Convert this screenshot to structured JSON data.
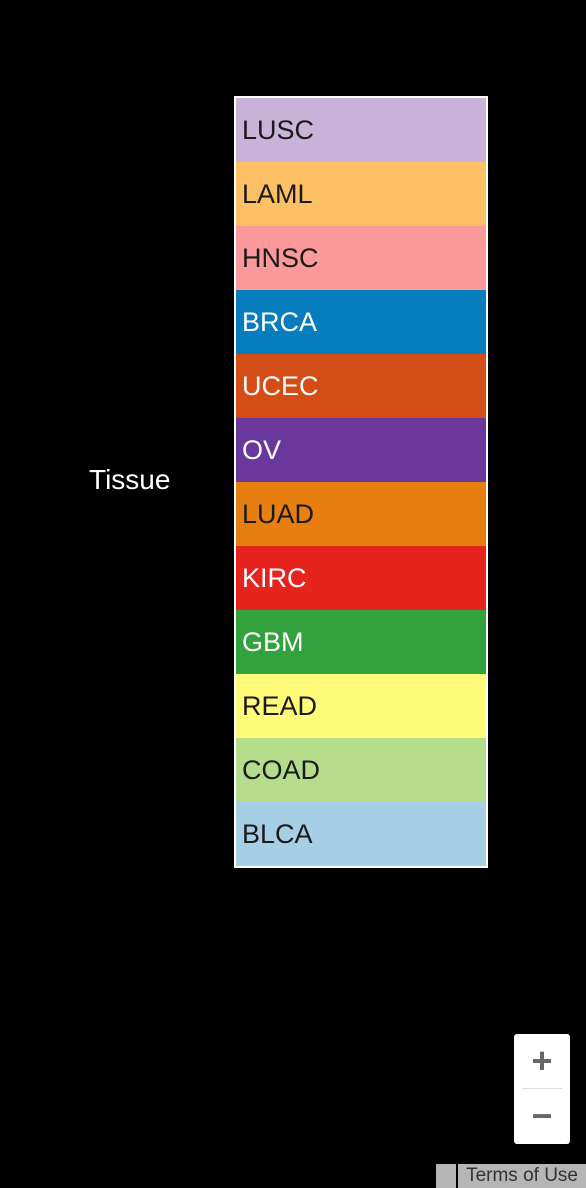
{
  "legend": {
    "title": "Tissue",
    "items": [
      {
        "label": "LUSC",
        "color": "#c9b3d9",
        "text_color": "#1a1a1a"
      },
      {
        "label": "LAML",
        "color": "#fdc064",
        "text_color": "#1a1a1a"
      },
      {
        "label": "HNSC",
        "color": "#fc999a",
        "text_color": "#1a1a1a"
      },
      {
        "label": "BRCA",
        "color": "#087dbd",
        "text_color": "#ffffff"
      },
      {
        "label": "UCEC",
        "color": "#d44c16",
        "text_color": "#ffffff"
      },
      {
        "label": "OV",
        "color": "#6a379c",
        "text_color": "#ffffff"
      },
      {
        "label": "LUAD",
        "color": "#e67f10",
        "text_color": "#1a1a1a"
      },
      {
        "label": "KIRC",
        "color": "#e6231c",
        "text_color": "#ffffff"
      },
      {
        "label": "GBM",
        "color": "#33a13d",
        "text_color": "#ffffff"
      },
      {
        "label": "READ",
        "color": "#fffa78",
        "text_color": "#1a1a1a"
      },
      {
        "label": "COAD",
        "color": "#b5dc8b",
        "text_color": "#1a1a1a"
      },
      {
        "label": "BLCA",
        "color": "#a6cee5",
        "text_color": "#1a1a1a"
      }
    ]
  },
  "map_controls": {
    "zoom_in_label": "+",
    "zoom_out_label": "−"
  },
  "footer": {
    "terms_label": "Terms of Use"
  }
}
